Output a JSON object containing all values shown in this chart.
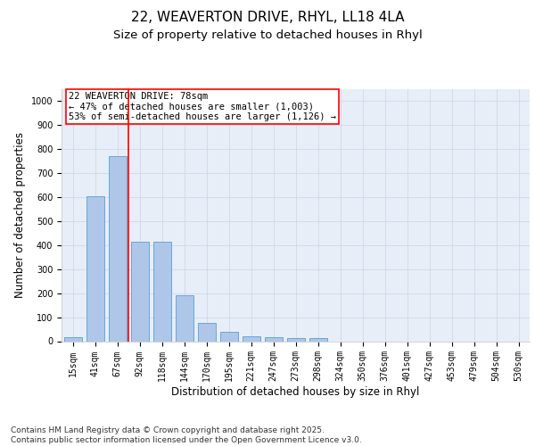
{
  "title_line1": "22, WEAVERTON DRIVE, RHYL, LL18 4LA",
  "title_line2": "Size of property relative to detached houses in Rhyl",
  "xlabel": "Distribution of detached houses by size in Rhyl",
  "ylabel": "Number of detached properties",
  "categories": [
    "15sqm",
    "41sqm",
    "67sqm",
    "92sqm",
    "118sqm",
    "144sqm",
    "170sqm",
    "195sqm",
    "221sqm",
    "247sqm",
    "273sqm",
    "298sqm",
    "324sqm",
    "350sqm",
    "376sqm",
    "401sqm",
    "427sqm",
    "453sqm",
    "479sqm",
    "504sqm",
    "530sqm"
  ],
  "values": [
    15,
    605,
    770,
    415,
    415,
    193,
    77,
    40,
    20,
    17,
    12,
    12,
    0,
    0,
    0,
    0,
    0,
    0,
    0,
    0,
    0
  ],
  "bar_color": "#aec6e8",
  "bar_edge_color": "#5a9fd4",
  "vline_color": "red",
  "annotation_box_text": "22 WEAVERTON DRIVE: 78sqm\n← 47% of detached houses are smaller (1,003)\n53% of semi-detached houses are larger (1,126) →",
  "ylim": [
    0,
    1050
  ],
  "yticks": [
    0,
    100,
    200,
    300,
    400,
    500,
    600,
    700,
    800,
    900,
    1000
  ],
  "grid_color": "#d0d8e8",
  "background_color": "#e8eef8",
  "footer_text": "Contains HM Land Registry data © Crown copyright and database right 2025.\nContains public sector information licensed under the Open Government Licence v3.0.",
  "title_fontsize": 11,
  "subtitle_fontsize": 9.5,
  "axis_label_fontsize": 8.5,
  "tick_fontsize": 7,
  "annotation_fontsize": 7.5,
  "footer_fontsize": 6.5
}
